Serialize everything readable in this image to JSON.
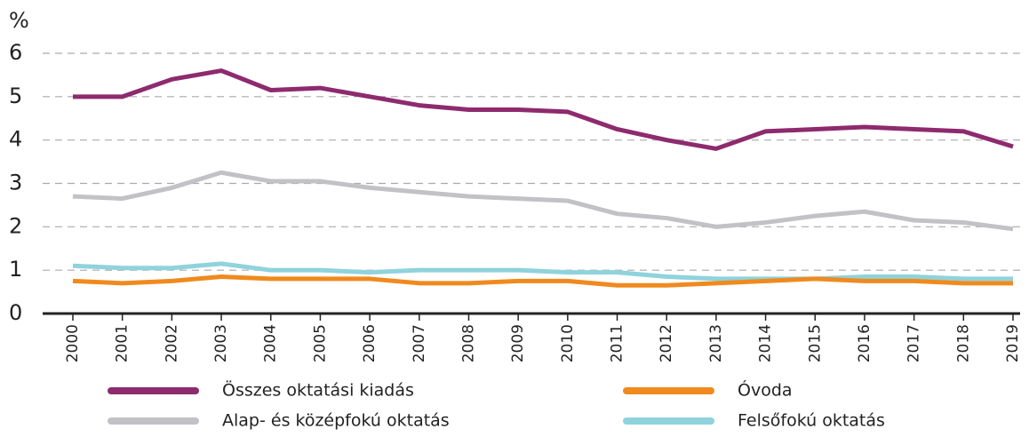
{
  "chart_data": {
    "type": "line",
    "y_label": "%",
    "categories": [
      "2000",
      "2001",
      "2002",
      "2003",
      "2004",
      "2005",
      "2006",
      "2007",
      "2008",
      "2009",
      "2010",
      "2011",
      "2012",
      "2013",
      "2014",
      "2015",
      "2016",
      "2017",
      "2018",
      "2019"
    ],
    "series": [
      {
        "name": "Összes oktatási kiadás",
        "color": "#8e2a6e",
        "values": [
          5.0,
          5.0,
          5.4,
          5.6,
          5.15,
          5.2,
          5.0,
          4.8,
          4.7,
          4.7,
          4.65,
          4.25,
          4.0,
          3.8,
          4.2,
          4.25,
          4.3,
          4.25,
          4.2,
          3.85
        ]
      },
      {
        "name": "Óvoda",
        "color": "#f08a1e",
        "values": [
          0.75,
          0.7,
          0.75,
          0.85,
          0.8,
          0.8,
          0.8,
          0.7,
          0.7,
          0.75,
          0.75,
          0.65,
          0.65,
          0.7,
          0.75,
          0.8,
          0.75,
          0.75,
          0.7,
          0.7
        ]
      },
      {
        "name": "Alap- és középfokú oktatás",
        "color": "#c2c2c6",
        "values": [
          2.7,
          2.65,
          2.9,
          3.25,
          3.05,
          3.05,
          2.9,
          2.8,
          2.7,
          2.65,
          2.6,
          2.3,
          2.2,
          2.0,
          2.1,
          2.25,
          2.35,
          2.15,
          2.1,
          1.95
        ]
      },
      {
        "name": "Felsőfokú oktatás",
        "color": "#8fd3dc",
        "values": [
          1.1,
          1.05,
          1.05,
          1.15,
          1.0,
          1.0,
          0.95,
          1.0,
          1.0,
          1.0,
          0.95,
          0.95,
          0.85,
          0.8,
          0.8,
          0.8,
          0.85,
          0.85,
          0.8,
          0.8
        ]
      }
    ],
    "ylim": [
      0,
      6
    ],
    "yticks": [
      0,
      1,
      2,
      3,
      4,
      5,
      6
    ],
    "grid": true
  }
}
